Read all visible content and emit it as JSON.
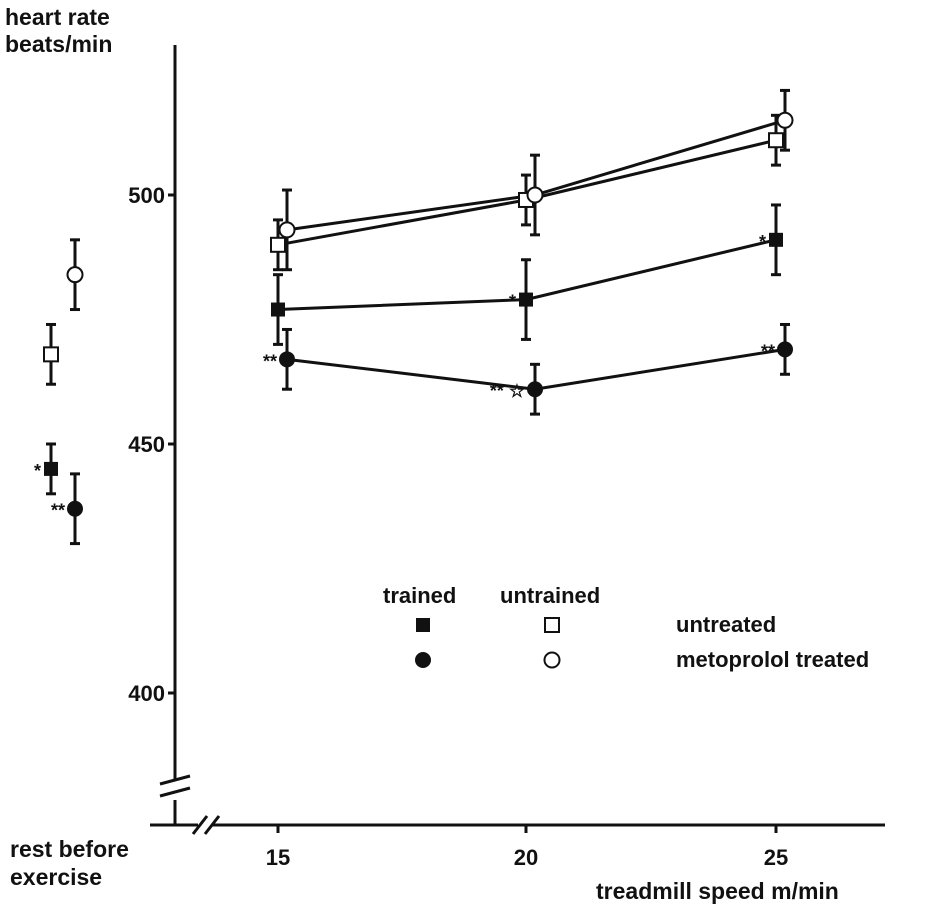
{
  "chart_data": {
    "type": "line",
    "title": "",
    "ylabel": "heart rate beats/min",
    "xlabel": "treadmill speed m/min",
    "rest_label": "rest before exercise",
    "ylim": [
      380,
      530
    ],
    "yticks": [
      400,
      450,
      500
    ],
    "x": [
      15,
      20,
      25
    ],
    "xticks": [
      15,
      20,
      25
    ],
    "legend": {
      "columns": [
        "trained",
        "untrained"
      ],
      "rows": [
        "untreated",
        "metoprolol treated"
      ]
    },
    "series": [
      {
        "name": "untreated trained",
        "marker": "filled-square",
        "rest": 445,
        "rest_err": 5,
        "rest_sig": "*",
        "values": [
          477,
          479,
          491
        ],
        "errors": [
          7,
          8,
          7
        ],
        "sig": [
          "",
          "*",
          "*"
        ]
      },
      {
        "name": "untreated untrained",
        "marker": "open-square",
        "rest": 468,
        "rest_err": 6,
        "rest_sig": "",
        "values": [
          490,
          499,
          511
        ],
        "errors": [
          5,
          5,
          5
        ],
        "sig": [
          "",
          "",
          ""
        ]
      },
      {
        "name": "metoprolol treated trained",
        "marker": "filled-circle",
        "rest": 437,
        "rest_err": 7,
        "rest_sig": "**",
        "values": [
          467,
          461,
          469
        ],
        "errors": [
          6,
          5,
          5
        ],
        "sig": [
          "**",
          "** ☆",
          "**"
        ]
      },
      {
        "name": "metoprolol treated untrained",
        "marker": "open-circle",
        "rest": 484,
        "rest_err": 7,
        "rest_sig": "",
        "values": [
          493,
          500,
          515
        ],
        "errors": [
          8,
          8,
          6
        ],
        "sig": [
          "",
          "",
          ""
        ]
      }
    ],
    "grid": false,
    "legend_placement": "center-right"
  }
}
